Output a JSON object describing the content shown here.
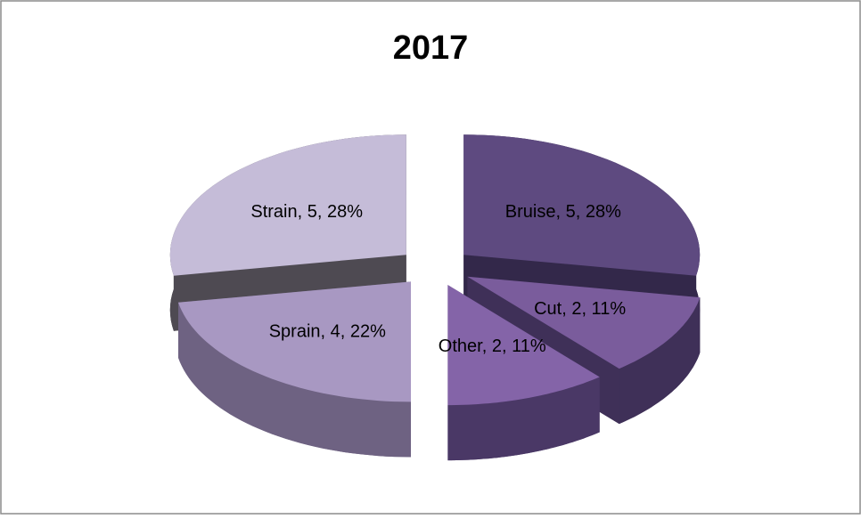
{
  "chart_data": {
    "type": "pie",
    "title": "2017",
    "values": [
      5,
      2,
      2,
      4,
      5
    ],
    "value_labels": [
      "Bruise, 5, 28%",
      "Cut, 2, 11%",
      "Other, 2, 11%",
      "Sprain, 4, 22%",
      "Strain, 5, 28%"
    ],
    "colors": [
      "#5e4a80",
      "#7a5c9c",
      "#8464a8",
      "#a898c2",
      "#c5bcd8"
    ],
    "side_colors": [
      "#33284a",
      "#3f3058",
      "#4a3866",
      "#6e6282",
      "#4e4a52"
    ]
  }
}
